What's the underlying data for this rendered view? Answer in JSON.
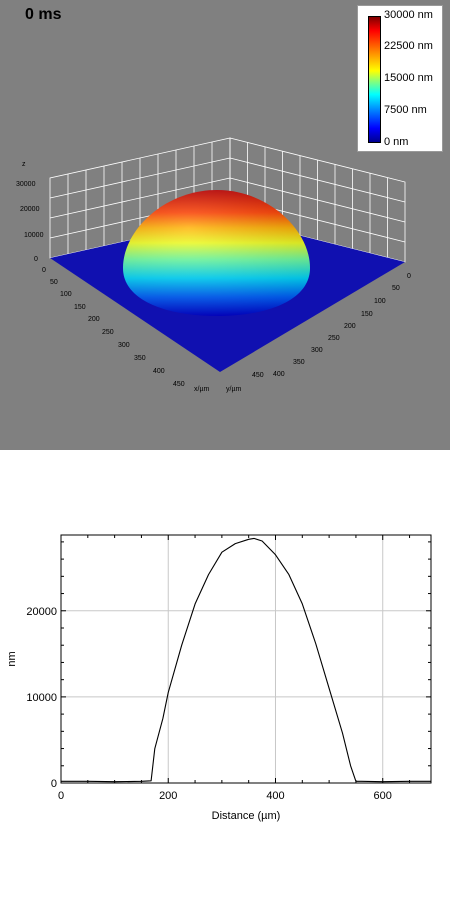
{
  "top": {
    "time_label": "0 ms",
    "colorbar": {
      "labels": [
        "30000 nm",
        "22500 nm",
        "15000 nm",
        "7500 nm",
        "0 nm"
      ]
    },
    "axes3d": {
      "z_label": "z",
      "z_ticks": [
        "30000",
        "20000",
        "10000",
        "0"
      ],
      "x_label": "x/µm",
      "x_ticks": [
        "0",
        "50",
        "100",
        "150",
        "200",
        "250",
        "300",
        "350",
        "400",
        "450"
      ],
      "y_label": "y/µm",
      "y_ticks": [
        "0",
        "50",
        "100",
        "150",
        "200",
        "250",
        "300",
        "350",
        "400",
        "450"
      ]
    },
    "colors": {
      "background": "#808080",
      "floor": "#1010b0"
    }
  },
  "chart_data": {
    "type": "line",
    "xlabel": "Distance (µm)",
    "ylabel": "nm",
    "xlim": [
      0,
      690
    ],
    "ylim": [
      0,
      28800
    ],
    "x_ticks": [
      0,
      200,
      400,
      600
    ],
    "y_ticks": [
      0,
      10000,
      20000
    ],
    "grid": true,
    "series": [
      {
        "x": [
          0,
          50,
          100,
          150,
          168,
          175,
          190,
          200,
          225,
          250,
          275,
          300,
          325,
          350,
          360,
          375,
          400,
          425,
          450,
          475,
          500,
          525,
          540,
          550,
          560,
          600,
          650,
          690
        ],
        "y": [
          200,
          200,
          150,
          200,
          250,
          4000,
          7500,
          10500,
          16000,
          20800,
          24200,
          26800,
          27800,
          28300,
          28400,
          28100,
          26500,
          24200,
          20800,
          16200,
          11000,
          5800,
          2000,
          200,
          200,
          150,
          200,
          200
        ]
      }
    ]
  }
}
